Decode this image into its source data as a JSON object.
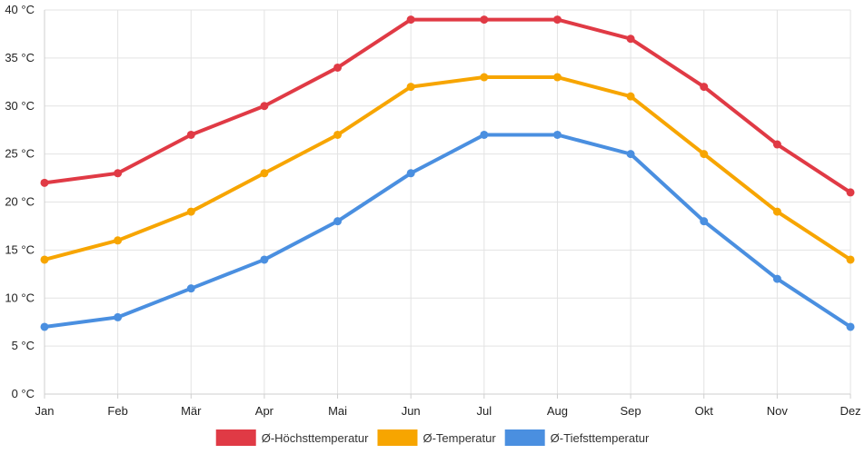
{
  "chart_data": {
    "type": "line",
    "title": "",
    "xlabel": "",
    "ylabel": "",
    "categories": [
      "Jan",
      "Feb",
      "Mär",
      "Apr",
      "Mai",
      "Jun",
      "Jul",
      "Aug",
      "Sep",
      "Okt",
      "Nov",
      "Dez"
    ],
    "ylim": [
      0,
      40
    ],
    "yticks": [
      {
        "value": 0,
        "label": "0 °C"
      },
      {
        "value": 5,
        "label": "5 °C"
      },
      {
        "value": 10,
        "label": "10 °C"
      },
      {
        "value": 15,
        "label": "15 °C"
      },
      {
        "value": 20,
        "label": "20 °C"
      },
      {
        "value": 25,
        "label": "25 °C"
      },
      {
        "value": 30,
        "label": "30 °C"
      },
      {
        "value": 35,
        "label": "35 °C"
      },
      {
        "value": 40,
        "label": "40 °C"
      }
    ],
    "grid": true,
    "legend_position": "bottom-center",
    "series": [
      {
        "name": "Ø-Höchsttemperatur",
        "color": "#e03a45",
        "values": [
          22,
          23,
          27,
          30,
          34,
          39,
          39,
          39,
          37,
          32,
          26,
          21
        ]
      },
      {
        "name": "Ø-Temperatur",
        "color": "#f7a500",
        "values": [
          14,
          16,
          19,
          23,
          27,
          32,
          33,
          33,
          31,
          25,
          19,
          14
        ]
      },
      {
        "name": "Ø-Tiefsttemperatur",
        "color": "#4a8fe0",
        "values": [
          7,
          8,
          11,
          14,
          18,
          23,
          27,
          27,
          25,
          18,
          12,
          7
        ]
      }
    ]
  }
}
